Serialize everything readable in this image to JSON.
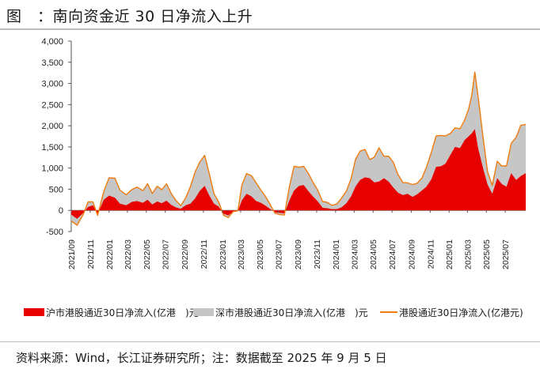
{
  "title": "图　：南向资金近 30 日净流入上升",
  "footer": "资料来源：Wind，长江证券研究所；注：数据截至 2025 年 9 月 5 日",
  "colors": {
    "sh": "#e60000",
    "sz": "#c6c6c6",
    "total": "#f07c10"
  },
  "legend": [
    {
      "key": "sh",
      "label": "沪市港股通近30日净流入(亿港　)元"
    },
    {
      "key": "sz",
      "label": "深市港股通近30日净流入(亿港　)元"
    },
    {
      "key": "total",
      "label": "港股通近30日净流入(亿港元)"
    }
  ],
  "chart_data": {
    "type": "area",
    "ylim": [
      -500,
      4000
    ],
    "yticks": [
      "-500",
      "0",
      "500",
      "1,000",
      "1,500",
      "2,000",
      "2,500",
      "3,000",
      "3,500",
      "4,000"
    ],
    "yticks_values": [
      -500,
      0,
      500,
      1000,
      1500,
      2000,
      2500,
      3000,
      3500,
      4000
    ],
    "x_start": "2021-09",
    "x_end": "2025-09-05",
    "xticks": [
      "2021/09",
      "2021/11",
      "2022/01",
      "2022/03",
      "2022/05",
      "2022/07",
      "2022/09",
      "2022/11",
      "2023/01",
      "2023/03",
      "2023/05",
      "2023/07",
      "2023/09",
      "2023/11",
      "2024/01",
      "2024/03",
      "2024/05",
      "2024/07",
      "2024/09",
      "2024/11",
      "2025/01",
      "2025/03",
      "2025/05",
      "2025/07"
    ],
    "x": [
      "2021-09-01",
      "2021-09-20",
      "2021-10-10",
      "2021-10-25",
      "2021-11-10",
      "2021-11-25",
      "2021-12-15",
      "2022-01-01",
      "2022-01-20",
      "2022-02-05",
      "2022-02-25",
      "2022-03-15",
      "2022-04-01",
      "2022-04-20",
      "2022-05-05",
      "2022-05-20",
      "2022-06-05",
      "2022-06-20",
      "2022-07-05",
      "2022-07-20",
      "2022-08-05",
      "2022-08-20",
      "2022-09-05",
      "2022-09-20",
      "2022-10-05",
      "2022-10-20",
      "2022-11-05",
      "2022-11-20",
      "2022-12-05",
      "2022-12-20",
      "2023-01-05",
      "2023-01-20",
      "2023-02-05",
      "2023-02-20",
      "2023-03-05",
      "2023-03-20",
      "2023-04-05",
      "2023-04-20",
      "2023-05-05",
      "2023-05-20",
      "2023-06-05",
      "2023-06-20",
      "2023-07-05",
      "2023-07-20",
      "2023-08-05",
      "2023-08-20",
      "2023-09-05",
      "2023-09-20",
      "2023-10-05",
      "2023-10-20",
      "2023-11-05",
      "2023-11-20",
      "2023-12-05",
      "2023-12-20",
      "2024-01-05",
      "2024-01-20",
      "2024-02-05",
      "2024-02-20",
      "2024-03-05",
      "2024-03-20",
      "2024-04-05",
      "2024-04-20",
      "2024-05-05",
      "2024-05-20",
      "2024-06-05",
      "2024-06-20",
      "2024-07-05",
      "2024-07-20",
      "2024-08-05",
      "2024-08-20",
      "2024-09-05",
      "2024-09-20",
      "2024-10-05",
      "2024-10-20",
      "2024-11-05",
      "2024-11-20",
      "2024-12-05",
      "2024-12-20",
      "2025-01-05",
      "2025-01-20",
      "2025-02-05",
      "2025-02-20",
      "2025-03-05",
      "2025-03-15",
      "2025-03-25",
      "2025-04-05",
      "2025-04-20",
      "2025-05-05",
      "2025-05-20",
      "2025-06-05",
      "2025-06-20",
      "2025-07-05",
      "2025-07-20",
      "2025-08-05",
      "2025-08-20",
      "2025-09-05"
    ],
    "series": [
      {
        "name": "沪市港股通近30日净流入(亿港　)元",
        "values": [
          -100,
          -200,
          -60,
          80,
          120,
          -80,
          250,
          350,
          300,
          160,
          120,
          200,
          220,
          180,
          250,
          140,
          210,
          170,
          230,
          130,
          70,
          40,
          120,
          160,
          280,
          460,
          580,
          350,
          160,
          90,
          -80,
          -120,
          -30,
          -20,
          240,
          390,
          330,
          220,
          180,
          110,
          30,
          -50,
          -60,
          -70,
          230,
          470,
          580,
          600,
          460,
          330,
          210,
          60,
          50,
          30,
          30,
          70,
          170,
          330,
          560,
          720,
          780,
          760,
          660,
          680,
          760,
          680,
          540,
          420,
          360,
          390,
          320,
          380,
          470,
          560,
          740,
          1030,
          1040,
          1100,
          1310,
          1500,
          1470,
          1660,
          1750,
          1820,
          1920,
          1450,
          1010,
          610,
          390,
          760,
          620,
          560,
          880,
          720,
          810,
          880
        ]
      },
      {
        "name": "深市港股通近30日净流入(亿港　)元",
        "values": [
          -150,
          -150,
          -30,
          120,
          80,
          -40,
          200,
          420,
          460,
          320,
          250,
          290,
          330,
          290,
          380,
          260,
          360,
          320,
          400,
          270,
          160,
          70,
          180,
          400,
          620,
          680,
          720,
          510,
          240,
          110,
          -40,
          -50,
          0,
          10,
          360,
          480,
          490,
          430,
          300,
          220,
          100,
          -20,
          -40,
          -40,
          320,
          570,
          440,
          440,
          420,
          340,
          260,
          150,
          140,
          90,
          120,
          220,
          290,
          420,
          640,
          680,
          660,
          440,
          600,
          800,
          520,
          600,
          600,
          430,
          300,
          260,
          290,
          260,
          290,
          460,
          640,
          730,
          730,
          660,
          510,
          450,
          460,
          470,
          650,
          900,
          1350,
          1200,
          740,
          300,
          200,
          400,
          430,
          490,
          700,
          1010,
          1200,
          1150
        ]
      },
      {
        "name": "港股通近30日净流入(亿港元)",
        "values": [
          -250,
          -350,
          -90,
          200,
          200,
          -120,
          450,
          770,
          760,
          480,
          370,
          490,
          550,
          470,
          630,
          400,
          570,
          490,
          630,
          400,
          230,
          110,
          300,
          560,
          900,
          1140,
          1300,
          860,
          400,
          200,
          -120,
          -170,
          -30,
          -10,
          600,
          870,
          820,
          650,
          480,
          330,
          130,
          -70,
          -100,
          -110,
          550,
          1040,
          1020,
          1040,
          880,
          670,
          470,
          210,
          190,
          120,
          150,
          290,
          460,
          750,
          1200,
          1400,
          1440,
          1200,
          1260,
          1480,
          1280,
          1280,
          1140,
          850,
          660,
          650,
          610,
          640,
          760,
          1020,
          1380,
          1760,
          1770,
          1760,
          1820,
          1950,
          1930,
          2130,
          2400,
          2720,
          3270,
          2650,
          1750,
          910,
          590,
          1160,
          1050,
          1050,
          1580,
          1730,
          2010,
          2030
        ]
      }
    ]
  }
}
